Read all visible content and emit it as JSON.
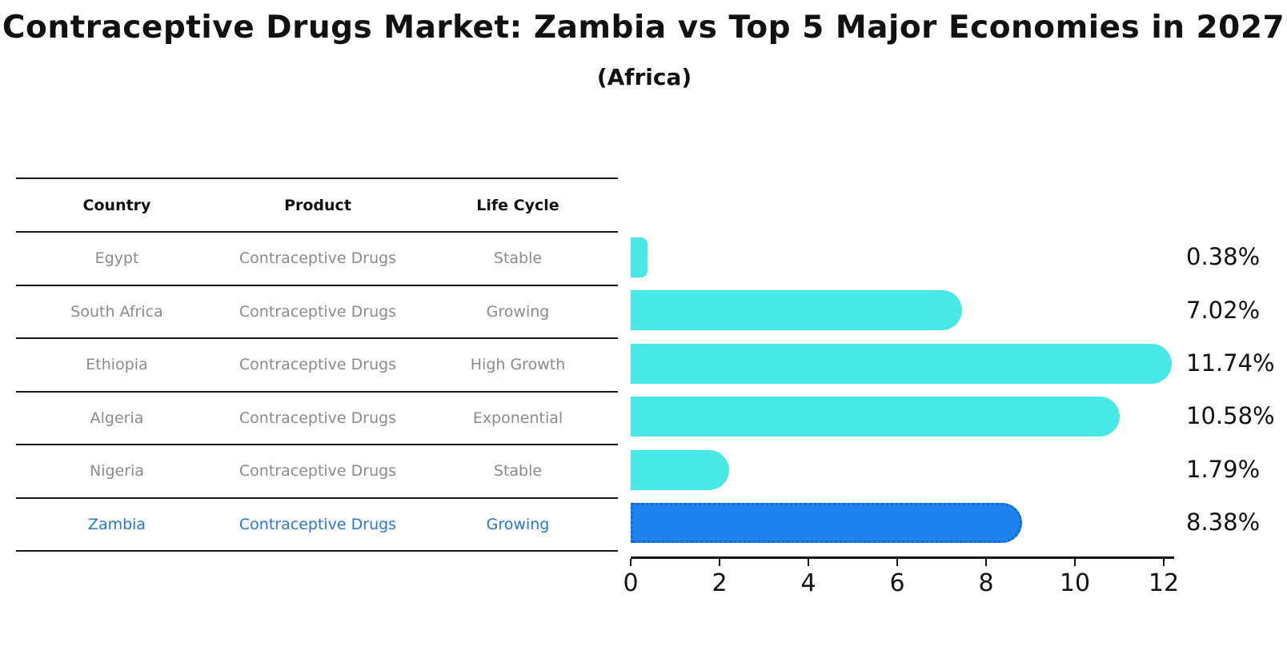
{
  "title": "Contraceptive Drugs Market: Zambia vs Top 5 Major Economies in 2027",
  "subtitle": "(Africa)",
  "table": {
    "headers": [
      "Country",
      "Product",
      "Life Cycle"
    ],
    "rows": [
      {
        "country": "Egypt",
        "product": "Contraceptive Drugs",
        "life_cycle": "Stable",
        "highlight": false
      },
      {
        "country": "South Africa",
        "product": "Contraceptive Drugs",
        "life_cycle": "Growing",
        "highlight": false
      },
      {
        "country": "Ethiopia",
        "product": "Contraceptive Drugs",
        "life_cycle": "High Growth",
        "highlight": false
      },
      {
        "country": "Algeria",
        "product": "Contraceptive Drugs",
        "life_cycle": "Exponential",
        "highlight": false
      },
      {
        "country": "Nigeria",
        "product": "Contraceptive Drugs",
        "life_cycle": "Stable",
        "highlight": true
      }
    ],
    "highlight_row": {
      "country": "Zambia",
      "product": "Contraceptive Drugs",
      "life_cycle": "Growing"
    }
  },
  "chart_data": {
    "type": "bar",
    "orientation": "horizontal",
    "title": "Contraceptive Drugs Market: Zambia vs Top 5 Major Economies in 2027",
    "subtitle": "(Africa)",
    "categories": [
      "Egypt",
      "South Africa",
      "Ethiopia",
      "Algeria",
      "Nigeria",
      "Zambia"
    ],
    "values": [
      0.38,
      7.02,
      11.74,
      10.58,
      1.79,
      8.38
    ],
    "value_labels": [
      "0.38%",
      "7.02%",
      "11.74%",
      "10.58%",
      "1.79%",
      "8.38%"
    ],
    "xlabel": "",
    "ylabel": "",
    "xlim": [
      0,
      12.5
    ],
    "xticks": [
      0,
      2,
      4,
      6,
      8,
      10,
      12
    ],
    "grid": false,
    "legend": false,
    "bar_color": "#48E8E6",
    "highlight_index": 5,
    "highlight_color": "#1E82F0",
    "highlight_border_color": "#1266D6",
    "highlight_text_color": "#2878CC"
  }
}
